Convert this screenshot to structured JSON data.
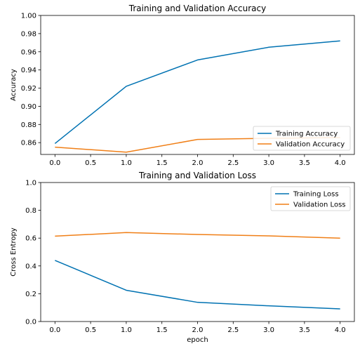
{
  "chart_data": [
    {
      "type": "line",
      "title": "Training and Validation Accuracy",
      "xlabel": "",
      "ylabel": "Accuracy",
      "x": [
        0,
        1,
        2,
        3,
        4
      ],
      "xlim": [
        -0.2,
        4.2
      ],
      "ylim": [
        0.847,
        1.0
      ],
      "x_ticks": [
        "0.0",
        "0.5",
        "1.0",
        "1.5",
        "2.0",
        "2.5",
        "3.0",
        "3.5",
        "4.0"
      ],
      "y_ticks": [
        "0.86",
        "0.88",
        "0.90",
        "0.92",
        "0.94",
        "0.96",
        "0.98",
        "1.00"
      ],
      "grid": false,
      "legend_position": "lower-right",
      "series": [
        {
          "name": "Training Accuracy",
          "color": "#0072B2",
          "values": [
            0.859,
            0.922,
            0.951,
            0.965,
            0.972
          ]
        },
        {
          "name": "Validation Accuracy",
          "color": "#F07F17",
          "values": [
            0.855,
            0.8495,
            0.8635,
            0.8648,
            0.8655
          ]
        }
      ]
    },
    {
      "type": "line",
      "title": "Training and Validation Loss",
      "xlabel": "epoch",
      "ylabel": "Cross Entropy",
      "x": [
        0,
        1,
        2,
        3,
        4
      ],
      "xlim": [
        -0.2,
        4.2
      ],
      "ylim": [
        0.0,
        1.0
      ],
      "x_ticks": [
        "0.0",
        "0.5",
        "1.0",
        "1.5",
        "2.0",
        "2.5",
        "3.0",
        "3.5",
        "4.0"
      ],
      "y_ticks": [
        "0.0",
        "0.2",
        "0.4",
        "0.6",
        "0.8",
        "1.0"
      ],
      "grid": false,
      "legend_position": "upper-right",
      "series": [
        {
          "name": "Training Loss",
          "color": "#0072B2",
          "values": [
            0.44,
            0.225,
            0.138,
            0.113,
            0.091
          ]
        },
        {
          "name": "Validation Loss",
          "color": "#F07F17",
          "values": [
            0.614,
            0.64,
            0.626,
            0.616,
            0.6
          ]
        }
      ]
    }
  ]
}
